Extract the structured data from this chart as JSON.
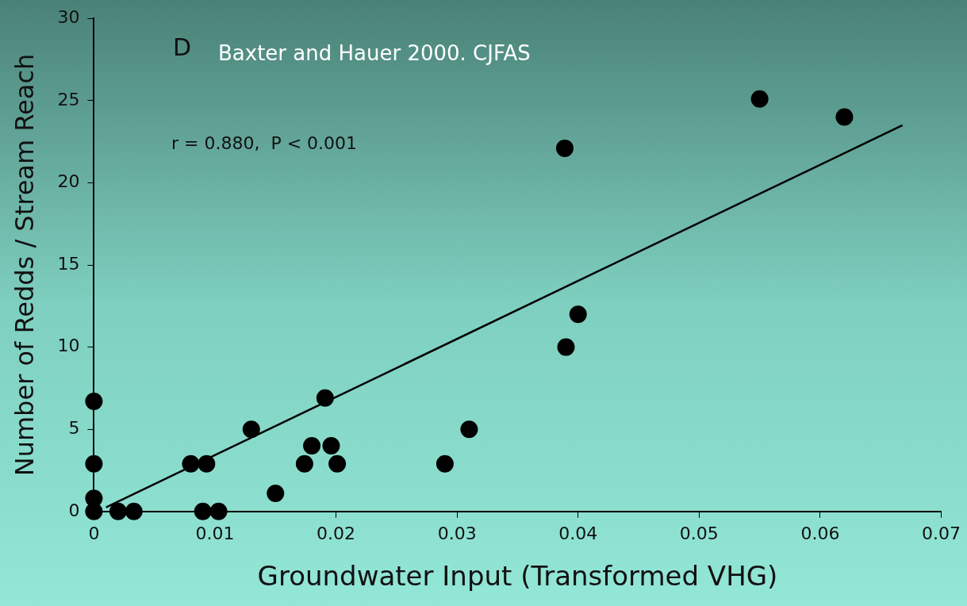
{
  "chart_data": {
    "type": "scatter",
    "xlabel": "Groundwater Input (Transformed VHG)",
    "ylabel": "Number of Redds / Stream Reach",
    "annotations": [
      "D",
      "Baxter and Hauer 2000. CJFAS",
      "r = 0.880,  P < 0.001"
    ],
    "xlim": [
      0,
      0.07
    ],
    "xticks": [
      0,
      0.01,
      0.02,
      0.03,
      0.04,
      0.05,
      0.06,
      0.07
    ],
    "ylim": [
      0,
      30
    ],
    "yticks": [
      0,
      5,
      10,
      15,
      20,
      25,
      30
    ],
    "grid": false,
    "legend": false,
    "series": [
      {
        "color": "#000000",
        "marker": "circle",
        "x": [
          0,
          0,
          0,
          0,
          0.002,
          0.0033,
          0.008,
          0.0093,
          0.009,
          0.0103,
          0.013,
          0.015,
          0.0174,
          0.018,
          0.0191,
          0.0196,
          0.0201,
          0.029,
          0.031,
          0.0389,
          0.039,
          0.04,
          0.055,
          0.062
        ],
        "values": [
          6.7,
          2.9,
          0.8,
          0,
          0,
          0,
          2.9,
          2.9,
          0,
          0,
          5,
          1.1,
          2.9,
          4,
          6.9,
          4,
          2.9,
          2.9,
          5,
          22.1,
          10,
          12,
          25.1,
          24
        ]
      },
      {
        "type": "line",
        "color": "#000000",
        "marker": "none",
        "line_style": "solid",
        "x": [
          0.001,
          0.0668
        ],
        "values": [
          0.25,
          23.5
        ]
      }
    ]
  }
}
